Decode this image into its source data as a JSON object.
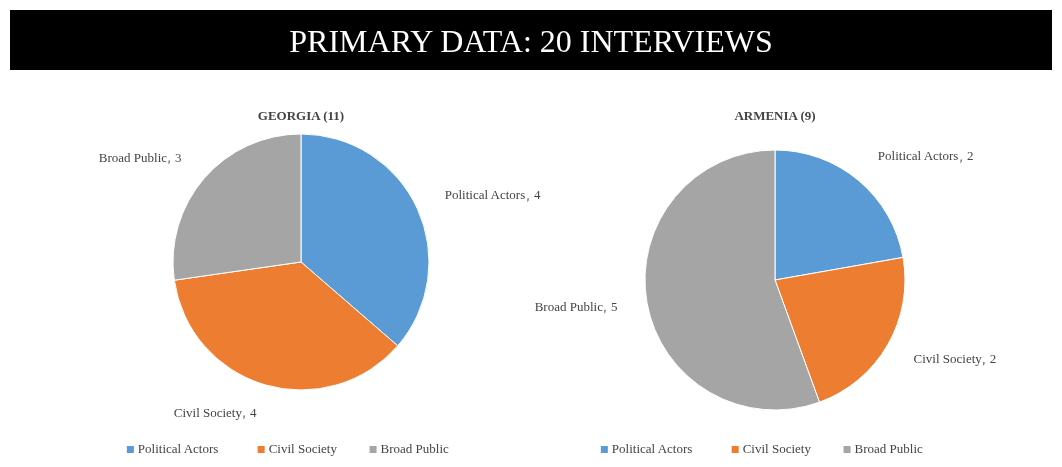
{
  "chart_data": [
    {
      "type": "pie",
      "title": "GEORGIA (11)",
      "annotations": [
        "PRIMARY DATA: 20 INTERVIEWS"
      ],
      "categories": [
        "Political Actors",
        "Civil Society",
        "Broad Public"
      ],
      "values": [
        4,
        4,
        3
      ],
      "colors": [
        "#5b9bd5",
        "#ed7d31",
        "#a5a5a5"
      ],
      "data_labels": true,
      "legend": "bottom"
    },
    {
      "type": "pie",
      "title": "ARMENIA (9)",
      "categories": [
        "Political Actors",
        "Civil Society",
        "Broad Public"
      ],
      "values": [
        2,
        2,
        5
      ],
      "colors": [
        "#5b9bd5",
        "#ed7d31",
        "#a5a5a5"
      ],
      "data_labels": true,
      "legend": "bottom"
    }
  ]
}
